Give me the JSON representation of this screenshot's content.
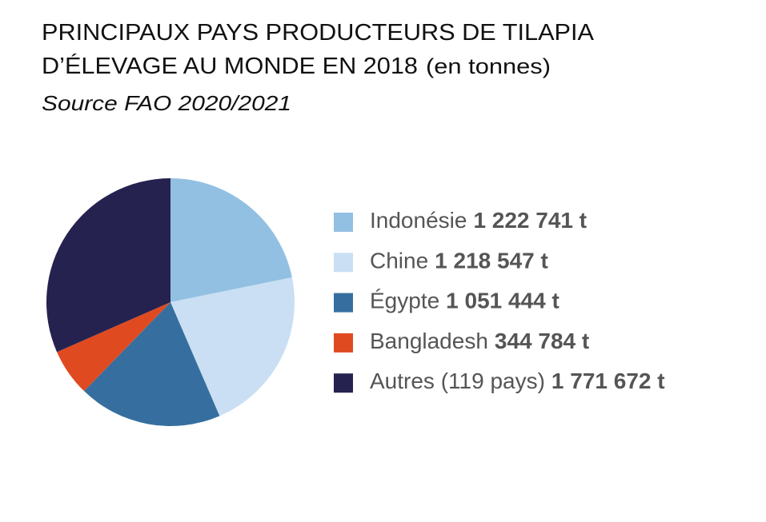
{
  "chart_data": {
    "type": "pie",
    "title": [
      "PRINCIPAUX PAYS PRODUCTEURS DE TILAPIA",
      "D’ÉLEVAGE AU MONDE EN 2018"
    ],
    "unit_note": "(en tonnes)",
    "subtitle": "Source FAO 2020/2021",
    "categories": [
      "Indonésie",
      "Chine",
      "Égypte",
      "Bangladesh",
      "Autres (119 pays)"
    ],
    "values": [
      1222741,
      1218547,
      1051444,
      344784,
      1771672
    ],
    "value_labels": [
      "1 222 741 t",
      "1 218 547 t",
      "1 051 444 t",
      "344 784 t",
      "1 771 672 t"
    ],
    "colors": [
      "#92c0e2",
      "#cadff3",
      "#366f9f",
      "#e04a20",
      "#252250"
    ],
    "start_angle": 0,
    "direction": "clockwise"
  }
}
